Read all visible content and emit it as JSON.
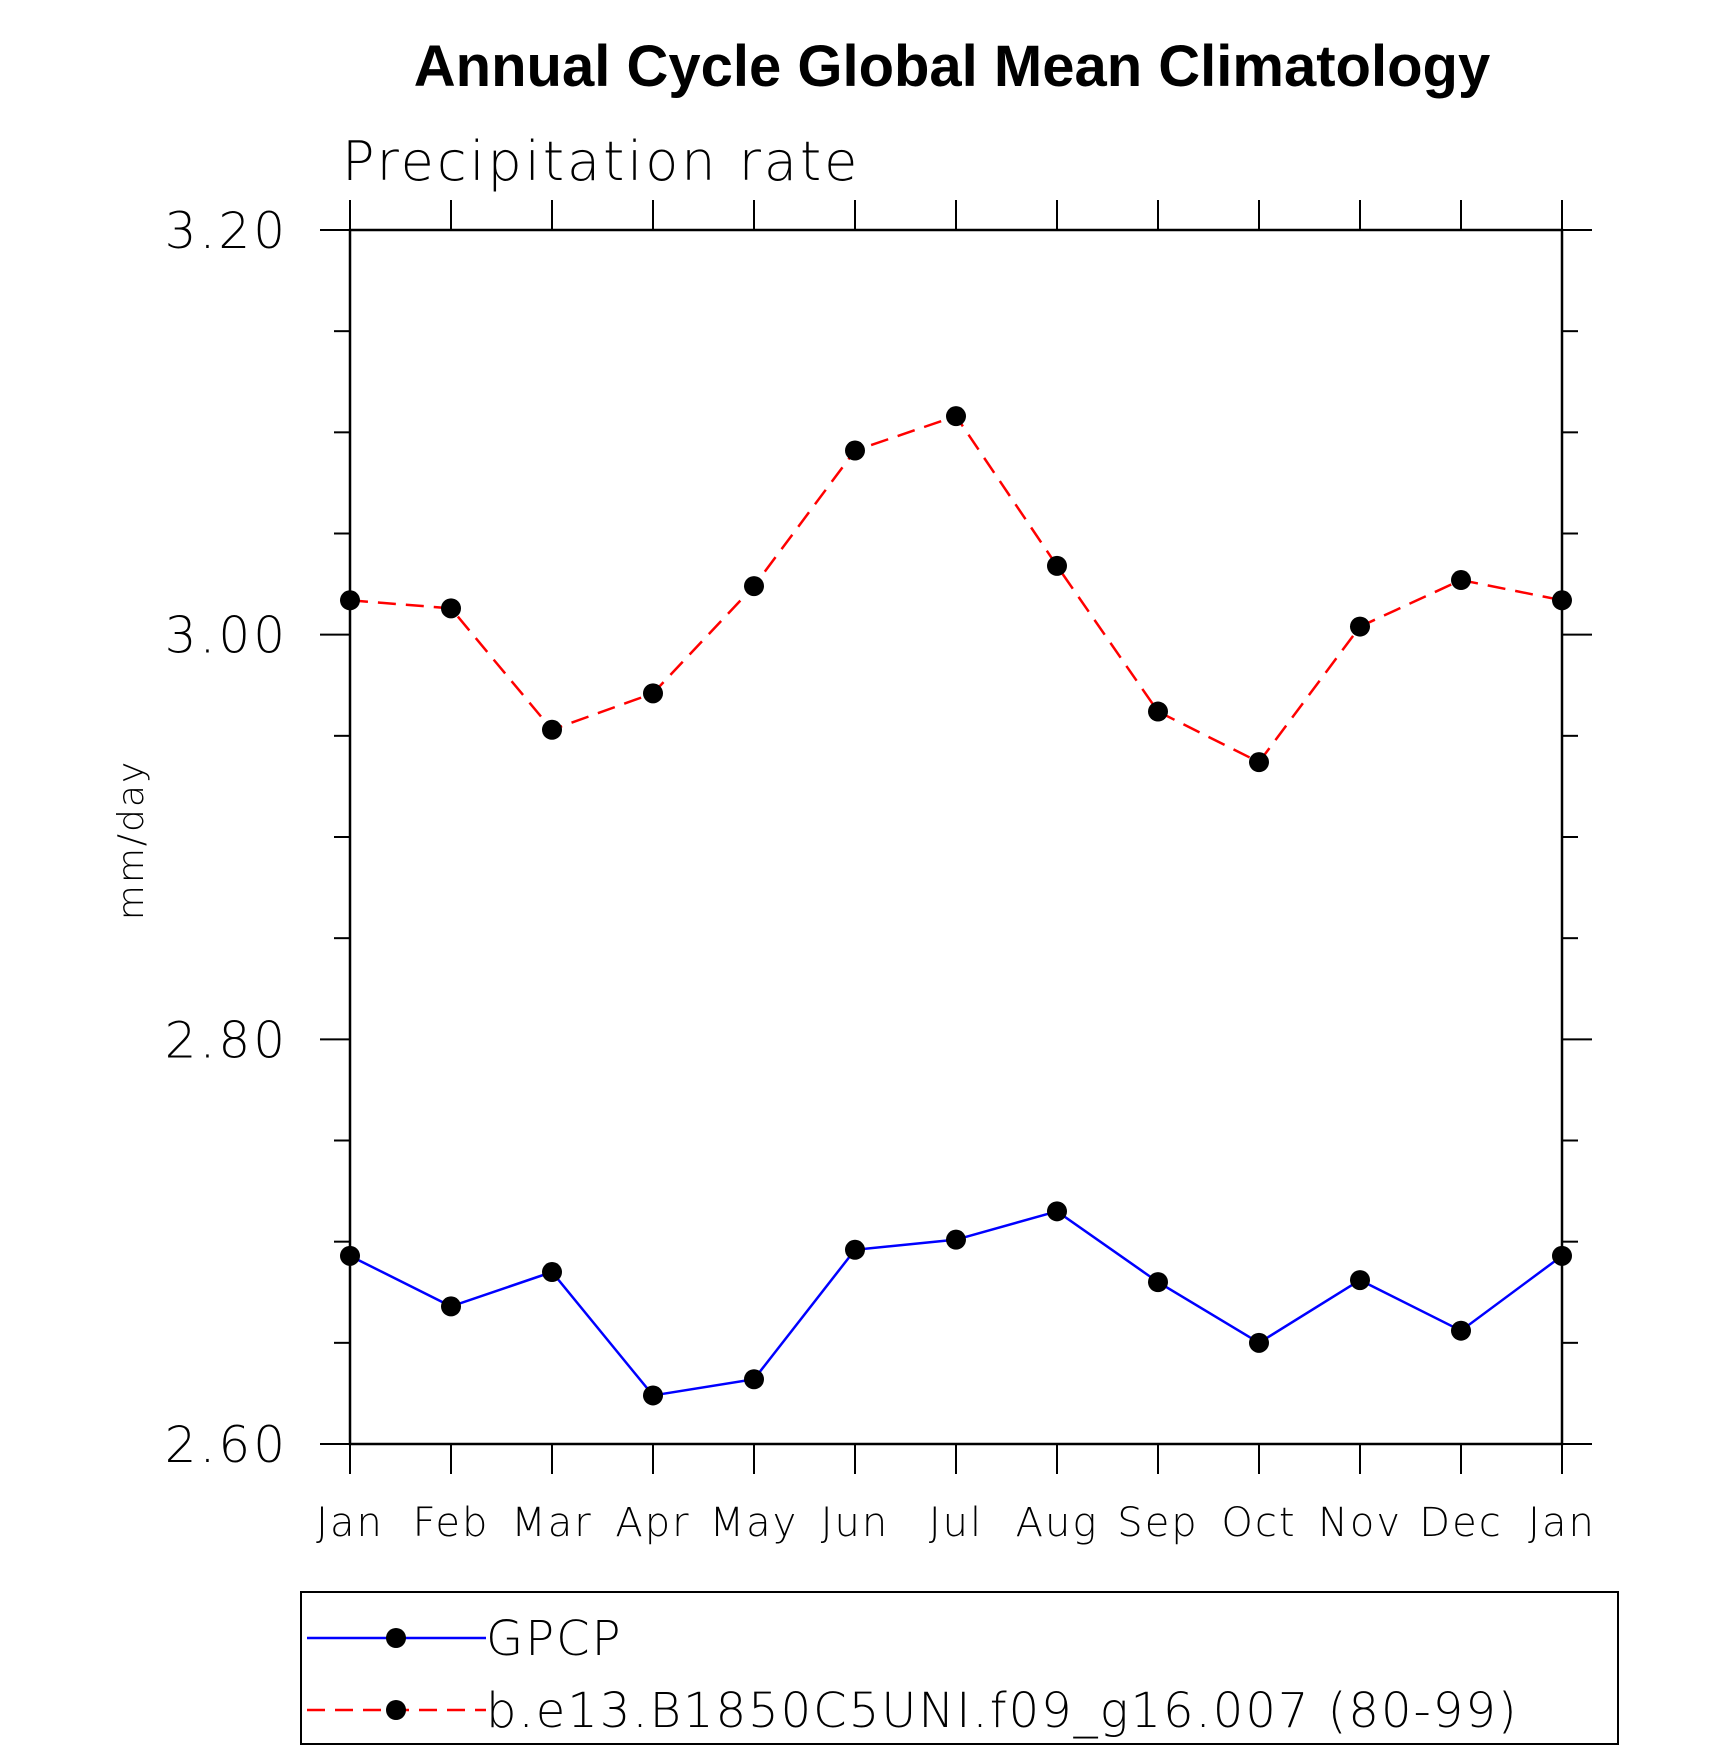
{
  "chart_data": {
    "type": "line",
    "title": "Annual Cycle Global Mean Climatology",
    "subtitle": "Precipitation rate",
    "xlabel": "",
    "ylabel": "mm/day",
    "categories": [
      "Jan",
      "Feb",
      "Mar",
      "Apr",
      "May",
      "Jun",
      "Jul",
      "Aug",
      "Sep",
      "Oct",
      "Nov",
      "Dec",
      "Jan"
    ],
    "ylim": [
      2.6,
      3.2
    ],
    "yticks_major": [
      "2.60",
      "2.80",
      "3.00",
      "3.20"
    ],
    "ytick_values": [
      2.6,
      2.8,
      3.0,
      3.2
    ],
    "grid": false,
    "legend_position": "bottom",
    "series": [
      {
        "name": "GPCP",
        "color": "#0000ff",
        "dash": "solid",
        "marker": "filled-circle",
        "values": [
          2.693,
          2.668,
          2.685,
          2.624,
          2.632,
          2.696,
          2.701,
          2.715,
          2.68,
          2.65,
          2.681,
          2.656,
          2.693
        ]
      },
      {
        "name": "b.e13.B1850C5UNI.f09_g16.007 (80-99)",
        "color": "#ff0000",
        "dash": "dashed",
        "marker": "filled-circle",
        "values": [
          3.017,
          3.013,
          2.953,
          2.971,
          3.024,
          3.091,
          3.108,
          3.034,
          2.962,
          2.937,
          3.004,
          3.027,
          3.017
        ]
      }
    ]
  }
}
